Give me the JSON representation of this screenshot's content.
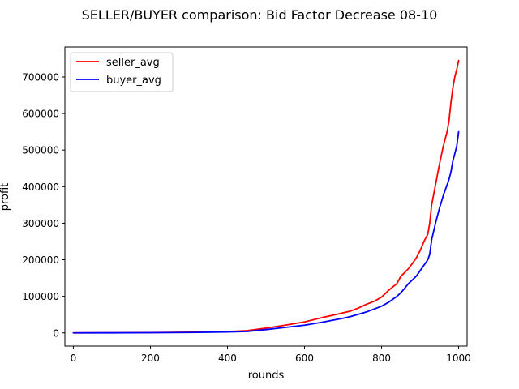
{
  "chart_data": {
    "type": "line",
    "title": "SELLER/BUYER comparison: Bid Factor Decrease 08-10",
    "xlabel": "rounds",
    "ylabel": "profit",
    "xlim": [
      -22,
      1022
    ],
    "ylim": [
      -36000,
      782000
    ],
    "x_ticks": [
      0,
      200,
      400,
      600,
      800,
      1000
    ],
    "y_ticks": [
      0,
      100000,
      200000,
      300000,
      400000,
      500000,
      600000,
      700000
    ],
    "grid": false,
    "legend_position": "upper-left",
    "series": [
      {
        "name": "seller_avg",
        "color": "#ff0000",
        "x": [
          0,
          100,
          200,
          300,
          400,
          450,
          500,
          550,
          600,
          650,
          680,
          700,
          720,
          740,
          760,
          780,
          800,
          820,
          840,
          850,
          860,
          870,
          880,
          890,
          900,
          910,
          920,
          925,
          930,
          940,
          950,
          960,
          970,
          975,
          980,
          985,
          990,
          995,
          1000
        ],
        "y": [
          0,
          300,
          800,
          1800,
          3500,
          6000,
          13000,
          21000,
          30000,
          43000,
          50000,
          55000,
          60000,
          68000,
          78000,
          86000,
          98000,
          118000,
          135000,
          155000,
          165000,
          176000,
          190000,
          205000,
          225000,
          250000,
          270000,
          300000,
          350000,
          405000,
          460000,
          510000,
          550000,
          580000,
          630000,
          670000,
          700000,
          720000,
          745000
        ]
      },
      {
        "name": "buyer_avg",
        "color": "#0000ff",
        "x": [
          0,
          100,
          200,
          300,
          400,
          450,
          500,
          550,
          600,
          650,
          680,
          700,
          720,
          740,
          760,
          780,
          800,
          820,
          840,
          850,
          860,
          870,
          880,
          890,
          900,
          910,
          920,
          925,
          930,
          940,
          950,
          960,
          970,
          975,
          980,
          985,
          990,
          995,
          1000
        ],
        "y": [
          0,
          200,
          500,
          1200,
          2500,
          4000,
          9000,
          15000,
          21000,
          30000,
          36000,
          40000,
          45000,
          51000,
          57000,
          65000,
          73000,
          85000,
          100000,
          110000,
          122000,
          135000,
          145000,
          155000,
          170000,
          185000,
          200000,
          215000,
          255000,
          300000,
          340000,
          375000,
          405000,
          420000,
          440000,
          470000,
          490000,
          510000,
          550000
        ]
      }
    ]
  }
}
